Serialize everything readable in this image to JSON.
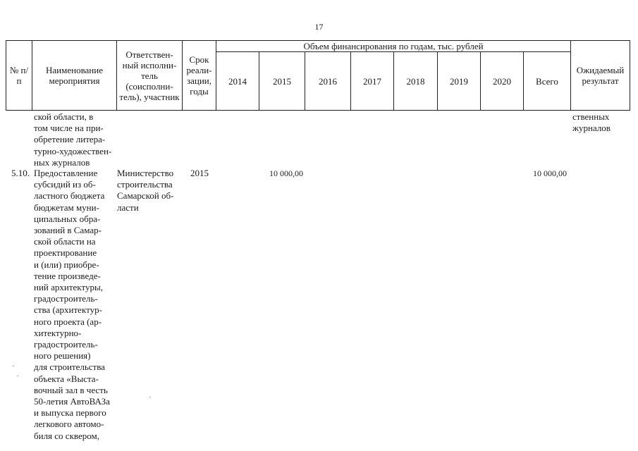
{
  "page_number": "17",
  "header": {
    "num": "№ п/п",
    "name": "Наименование мероприятия",
    "executor": "Ответствен-ный исполни-тель (соисполни-тель), участник",
    "term": "Срок реали-зации, годы",
    "funding": "Объем финансирования по годам, тыс. рублей",
    "years": [
      "2014",
      "2015",
      "2016",
      "2017",
      "2018",
      "2019",
      "2020"
    ],
    "total": "Всего",
    "result": "Ожидаемый результат"
  },
  "continued_row": {
    "name_lines": [
      "ской области, в",
      "том числе на при-",
      "обретение литера-",
      "турно-художествен-",
      "ных журналов"
    ],
    "result_lines": [
      "ственных",
      "журналов"
    ]
  },
  "row_5_10": {
    "num": "5.10.",
    "name_lines": [
      "Предоставление",
      "субсидий из об-",
      "ластного бюджета",
      "бюджетам муни-",
      "ципальных обра-",
      "зований в Самар-",
      "ской области на",
      "проектирование",
      "и (или) приобре-",
      "тение произведе-",
      "ний архитектуры,",
      "градостроитель-",
      "ства (архитектур-",
      "ного проекта (ар-",
      "хитектурно-",
      "градостроитель-",
      "ного решения)",
      "для строительства",
      "объекта «Выста-",
      "вочный зал в честь",
      "50-летия АвтоВАЗа",
      "и выпуска первого",
      "легкового автомо-",
      "биля со сквером,"
    ],
    "executor_lines": [
      "Министерство",
      "строительства",
      "Самарской об-",
      "ласти"
    ],
    "term": "2015",
    "amount_2015": "10 000,00",
    "total": "10 000,00"
  }
}
